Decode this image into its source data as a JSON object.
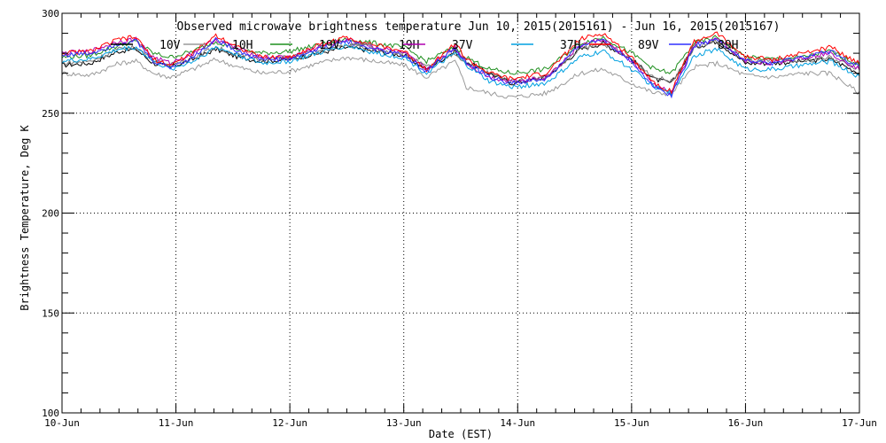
{
  "chart_data": {
    "type": "line",
    "title": "Observed microwave brightness temperature Jun 10, 2015(2015161) - Jun 16, 2015(2015167)",
    "xlabel": "Date (EST)",
    "ylabel": "Brightness Temperature, Deg K",
    "xlim": [
      0,
      7
    ],
    "ylim": [
      100,
      300
    ],
    "x_ticks": [
      {
        "x": 0,
        "label": "10-Jun"
      },
      {
        "x": 1,
        "label": "11-Jun"
      },
      {
        "x": 2,
        "label": "12-Jun"
      },
      {
        "x": 3,
        "label": "13-Jun"
      },
      {
        "x": 4,
        "label": "14-Jun"
      },
      {
        "x": 5,
        "label": "15-Jun"
      },
      {
        "x": 6,
        "label": "16-Jun"
      },
      {
        "x": 7,
        "label": "17-Jun"
      }
    ],
    "y_ticks": [
      100,
      150,
      200,
      250,
      300
    ],
    "grid": "dotted, at labeled ticks",
    "legend": "top, inside plot, two rows",
    "x": [
      0,
      0.25,
      0.5,
      0.65,
      0.8,
      0.95,
      1.15,
      1.35,
      1.55,
      1.75,
      2.0,
      2.25,
      2.5,
      2.75,
      3.0,
      3.2,
      3.45,
      3.55,
      3.75,
      3.95,
      4.25,
      4.55,
      4.75,
      5.0,
      5.2,
      5.35,
      5.55,
      5.75,
      6.0,
      6.25,
      6.5,
      6.75,
      7.0
    ],
    "series": [
      {
        "name": "10V",
        "color": "#000000",
        "values": [
          274,
          275,
          281,
          282,
          275,
          273,
          277,
          282,
          278,
          276,
          277,
          280,
          283,
          281,
          279,
          272,
          281,
          276,
          270,
          265,
          268,
          282,
          285,
          277,
          267,
          265,
          283,
          286,
          275,
          275,
          276,
          277,
          270
        ]
      },
      {
        "name": "10H",
        "color": "#9a9a9a",
        "values": [
          270,
          269,
          275,
          276,
          270,
          268,
          272,
          277,
          273,
          270,
          271,
          275,
          278,
          276,
          274,
          268,
          276,
          263,
          260,
          258,
          260,
          270,
          272,
          265,
          260,
          260,
          273,
          275,
          269,
          268,
          270,
          270,
          260
        ]
      },
      {
        "name": "19V",
        "color": "#1f8f1f",
        "values": [
          278,
          279,
          284,
          286,
          280,
          278,
          281,
          286,
          282,
          280,
          281,
          284,
          287,
          285,
          283,
          276,
          283,
          278,
          272,
          270,
          272,
          285,
          288,
          280,
          272,
          270,
          285,
          288,
          278,
          277,
          278,
          281,
          274
        ]
      },
      {
        "name": "19H",
        "color": "#777777",
        "values": [
          275,
          276,
          282,
          283,
          277,
          274,
          278,
          283,
          279,
          277,
          278,
          281,
          284,
          282,
          280,
          273,
          280,
          275,
          270,
          266,
          268,
          282,
          285,
          277,
          268,
          266,
          283,
          286,
          276,
          276,
          276,
          278,
          272
        ]
      },
      {
        "name": "37V",
        "color": "#b000b0",
        "values": [
          280,
          281,
          286,
          287,
          278,
          275,
          280,
          287,
          282,
          278,
          278,
          283,
          287,
          283,
          280,
          272,
          283,
          275,
          268,
          266,
          268,
          284,
          287,
          276,
          264,
          260,
          284,
          287,
          276,
          275,
          278,
          280,
          272
        ]
      },
      {
        "name": "37H",
        "color": "#00a0e0",
        "values": [
          276,
          277,
          282,
          283,
          276,
          272,
          276,
          283,
          279,
          275,
          276,
          280,
          284,
          280,
          278,
          270,
          280,
          274,
          266,
          263,
          265,
          278,
          281,
          272,
          263,
          260,
          279,
          282,
          272,
          272,
          274,
          276,
          268
        ]
      },
      {
        "name": "89V",
        "color": "#ff0000",
        "values": [
          280,
          281,
          287,
          288,
          277,
          274,
          280,
          289,
          283,
          278,
          278,
          284,
          288,
          284,
          281,
          272,
          285,
          277,
          270,
          267,
          270,
          287,
          290,
          278,
          265,
          261,
          286,
          290,
          278,
          277,
          280,
          283,
          275
        ]
      },
      {
        "name": "89H",
        "color": "#3030ff",
        "values": [
          279,
          280,
          285,
          286,
          276,
          273,
          278,
          287,
          281,
          277,
          277,
          282,
          286,
          282,
          279,
          271,
          283,
          275,
          268,
          265,
          267,
          284,
          287,
          276,
          263,
          259,
          284,
          287,
          276,
          275,
          278,
          281,
          273
        ]
      }
    ]
  }
}
